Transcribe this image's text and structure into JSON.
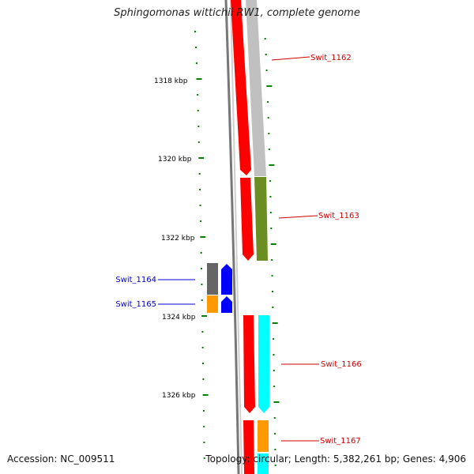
{
  "title": "Sphingomonas wittichii RW1, complete genome",
  "footer": {
    "accession": "Accession: NC_009511",
    "topology": "Topology: circular; Length: 5,382,261 bp; Genes: 4,906"
  },
  "ruler": {
    "labels": [
      "1318 kbp",
      "1320 kbp",
      "1322 kbp",
      "1324 kbp",
      "1326 kbp"
    ]
  },
  "colors": {
    "gene_red": "#ff0000",
    "gene_grey": "#c0c0c0",
    "olive": "#6b8e23",
    "cyan": "#00ffff",
    "orange": "#ff9900",
    "blue": "#0000ff",
    "dark_grey": "#666666",
    "tick_green": "#008000",
    "label_red": "#cc0000",
    "label_blue": "#0000cc"
  },
  "genes": [
    {
      "name": "Swit_1162",
      "color": "label_red"
    },
    {
      "name": "Swit_1163",
      "color": "label_red"
    },
    {
      "name": "Swit_1164",
      "color": "label_blue"
    },
    {
      "name": "Swit_1165",
      "color": "label_blue"
    },
    {
      "name": "Swit_1166",
      "color": "label_red"
    },
    {
      "name": "Swit_1167",
      "color": "label_red"
    }
  ]
}
